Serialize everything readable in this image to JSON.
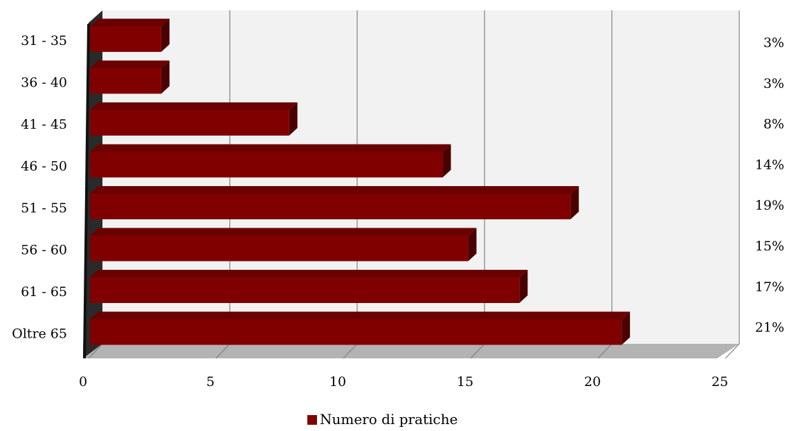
{
  "chart_data": {
    "type": "bar",
    "orientation": "horizontal",
    "rendering": "3d",
    "categories": [
      "31 - 35",
      "36 - 40",
      "41 - 45",
      "46 - 50",
      "51 - 55",
      "56 - 60",
      "61 - 65",
      "Oltre 65"
    ],
    "series": [
      {
        "name": "Numero di pratiche",
        "values": [
          3,
          3,
          8,
          14,
          19,
          15,
          17,
          21
        ],
        "color": "#800000"
      }
    ],
    "percent_labels": [
      "3%",
      "3%",
      "8%",
      "14%",
      "19%",
      "15%",
      "17%",
      "21%"
    ],
    "x_ticks": [
      "0",
      "5",
      "10",
      "15",
      "20",
      "25"
    ],
    "xlim": [
      0,
      25
    ],
    "grid": true,
    "legend_position": "bottom",
    "colors": {
      "bar_front": "#800000",
      "bar_top": "#6a0000",
      "bar_side": "#4a0000",
      "wall": "#f2f2f2",
      "floor": "#b3b3b3",
      "grid": "#808080",
      "axis_wall_dark": "#000000"
    }
  }
}
